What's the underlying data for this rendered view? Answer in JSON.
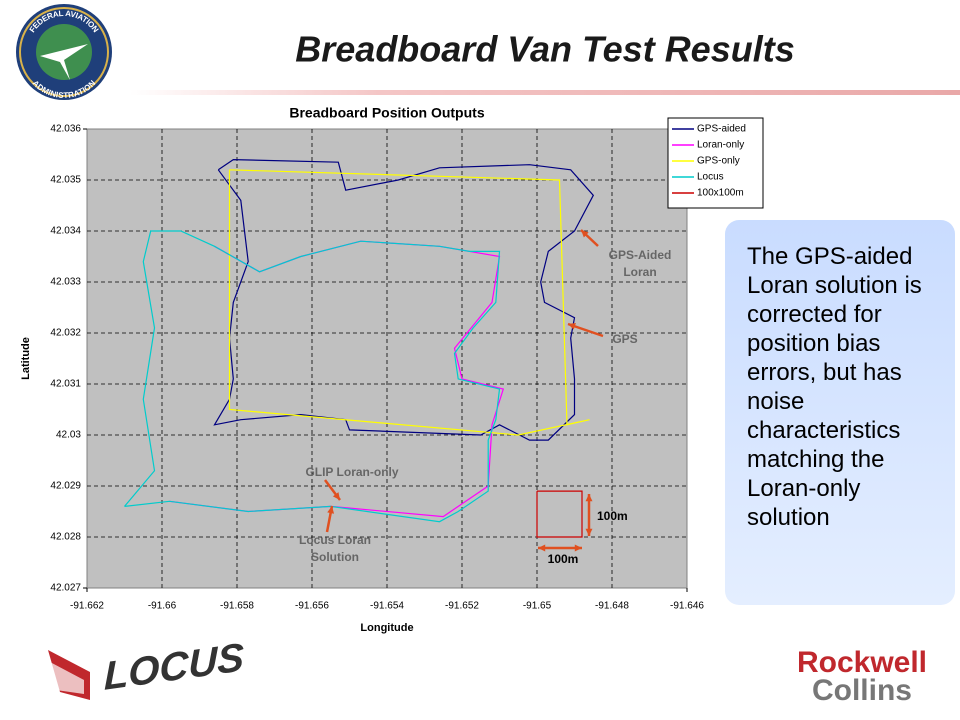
{
  "slide": {
    "title": "Breadboard Van Test Results",
    "seal_top": "FEDERAL AVIATION",
    "seal_bottom": "ADMINISTRATION",
    "sidebar": "The GPS-aided Loran solution is corrected for position bias errors, but has noise characteristics matching the Loran-only solution",
    "logo_left": "LOCUS",
    "logo_right": [
      "Rockwell",
      "Collins"
    ]
  },
  "chart_data": {
    "type": "line",
    "title": "Breadboard Position Outputs",
    "xlabel": "Longitude",
    "ylabel": "Latitude",
    "xlim": [
      -91.662,
      -91.646
    ],
    "xticks": [
      -91.662,
      -91.66,
      -91.658,
      -91.656,
      -91.654,
      -91.652,
      -91.65,
      -91.648,
      -91.646
    ],
    "ylim": [
      42.027,
      42.036
    ],
    "yticks": [
      42.027,
      42.028,
      42.029,
      42.03,
      42.031,
      42.032,
      42.033,
      42.034,
      42.035,
      42.036
    ],
    "grid": true,
    "legend": "top-right",
    "series": [
      {
        "name": "GPS-aided",
        "color": "#000080",
        "x": [
          -91.6585,
          -91.6581,
          -91.6553,
          -91.6551,
          -91.6537,
          -91.6526,
          -91.6502,
          -91.6491,
          -91.6485,
          -91.649,
          -91.6497,
          -91.6499,
          -91.6498,
          -91.649,
          -91.6491,
          -91.649,
          -91.649,
          -91.6497,
          -91.6502,
          -91.651,
          -91.6515,
          -91.655,
          -91.6551,
          -91.6563,
          -91.6579,
          -91.6586,
          -91.6582,
          -91.6581,
          -91.6582,
          -91.6581,
          -91.6577,
          -91.6579,
          -91.6585
        ],
        "values": [
          42.0352,
          42.0354,
          42.03535,
          42.0348,
          42.035,
          42.03524,
          42.0353,
          42.0352,
          42.0347,
          42.034,
          42.0336,
          42.033,
          42.0326,
          42.0323,
          42.0319,
          42.0311,
          42.0304,
          42.0299,
          42.0299,
          42.0302,
          42.03,
          42.0301,
          42.0303,
          42.0304,
          42.0303,
          42.0302,
          42.0307,
          42.0311,
          42.0319,
          42.0326,
          42.0334,
          42.0346,
          42.0352
        ]
      },
      {
        "name": "Loran-only",
        "color": "#ff00ff",
        "x": [
          -91.6586,
          -91.6574,
          -91.6563,
          -91.6547,
          -91.6526,
          -91.651,
          -91.6512,
          -91.6522,
          -91.652,
          -91.6509,
          -91.6512,
          -91.6513,
          -91.6525,
          -91.6555,
          -91.6577,
          -91.6598
        ],
        "values": [
          42.0337,
          42.0332,
          42.0335,
          42.0338,
          42.0337,
          42.0335,
          42.0326,
          42.0317,
          42.0311,
          42.0309,
          42.0302,
          42.029,
          42.0284,
          42.0286,
          42.0285,
          42.0287
        ]
      },
      {
        "name": "GPS-only",
        "color": "#ffff00",
        "x": [
          -91.6582,
          -91.6494,
          -91.6492,
          -91.6486,
          -91.6505,
          -91.6582,
          -91.6582
        ],
        "values": [
          42.0352,
          42.035,
          42.0302,
          42.0303,
          42.03,
          42.0305,
          42.0352
        ]
      },
      {
        "name": "Locus",
        "color": "#00cccc",
        "x": [
          -91.661,
          -91.6602,
          -91.6605,
          -91.6602,
          -91.6605,
          -91.6603,
          -91.6595,
          -91.6586,
          -91.6574,
          -91.6563,
          -91.6547,
          -91.6526,
          -91.6518,
          -91.651,
          -91.6511,
          -91.6517,
          -91.6522,
          -91.6521,
          -91.651,
          -91.6511,
          -91.6513,
          -91.6513,
          -91.6521,
          -91.6526,
          -91.6555,
          -91.6577,
          -91.6598,
          -91.661
        ],
        "values": [
          42.0286,
          42.0293,
          42.0307,
          42.0321,
          42.0334,
          42.034,
          42.034,
          42.0337,
          42.0332,
          42.0335,
          42.0338,
          42.0337,
          42.0336,
          42.0336,
          42.0326,
          42.0321,
          42.0316,
          42.0311,
          42.0309,
          42.0303,
          42.0299,
          42.0289,
          42.0285,
          42.0283,
          42.0286,
          42.0285,
          42.0287,
          42.0286
        ]
      },
      {
        "name": "100x100m",
        "color": "#cc0000",
        "x": [
          -91.65,
          -91.6488,
          -91.6488,
          -91.65,
          -91.65
        ],
        "values": [
          42.0289,
          42.0289,
          42.028,
          42.028,
          42.0289
        ]
      }
    ],
    "annotations": [
      [
        "GPS-Aided",
        "Loran"
      ],
      [
        "GPS"
      ],
      [
        "GLIP Loran-only"
      ],
      [
        "Locus Loran",
        "Solution"
      ],
      [
        "100m"
      ],
      [
        "100m"
      ]
    ]
  }
}
